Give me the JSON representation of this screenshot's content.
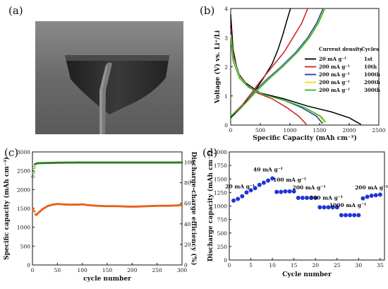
{
  "panels": {
    "a": {
      "letter": "(a)"
    },
    "b": {
      "letter": "(b)"
    },
    "c": {
      "letter": "(c)"
    },
    "d": {
      "letter": "(d)"
    }
  },
  "photo": {
    "description_colors": {
      "background": "#6f6f6f",
      "device": "#2b2b2b",
      "rod": "#7a7a7a"
    }
  },
  "chart_data": [
    {
      "id": "b",
      "type": "line",
      "xlabel": "Specific Capacity (mAh cm⁻³)",
      "ylabel": "Voltage (V) vs. Li⁺/Li",
      "xlim": [
        0,
        2500
      ],
      "ylim": [
        0,
        4
      ],
      "xticks": [
        "0",
        "500",
        "1000",
        "1500",
        "2000",
        "2500"
      ],
      "yticks": [
        "0",
        "1",
        "2",
        "3",
        "4"
      ],
      "legend_header": [
        "Current density",
        "Cycles"
      ],
      "series": [
        {
          "name": "20 mA g⁻¹",
          "cycle": "1st",
          "color": "#000000",
          "discharge": [
            [
              0,
              3.8
            ],
            [
              40,
              2.6
            ],
            [
              120,
              1.8
            ],
            [
              250,
              1.45
            ],
            [
              500,
              1.1
            ],
            [
              900,
              0.9
            ],
            [
              1300,
              0.65
            ],
            [
              1700,
              0.45
            ],
            [
              2000,
              0.25
            ],
            [
              2200,
              0.02
            ]
          ],
          "charge": [
            [
              0,
              0.25
            ],
            [
              200,
              0.65
            ],
            [
              400,
              1.15
            ],
            [
              550,
              1.6
            ],
            [
              700,
              2.1
            ],
            [
              800,
              2.6
            ],
            [
              880,
              3.1
            ],
            [
              950,
              3.6
            ],
            [
              1010,
              4.0
            ]
          ]
        },
        {
          "name": "200 mA g⁻¹",
          "cycle": "10th",
          "color": "#cc2222",
          "discharge": [
            [
              0,
              3.3
            ],
            [
              40,
              2.5
            ],
            [
              120,
              1.8
            ],
            [
              250,
              1.4
            ],
            [
              450,
              1.1
            ],
            [
              700,
              0.9
            ],
            [
              950,
              0.6
            ],
            [
              1150,
              0.3
            ],
            [
              1280,
              0.02
            ]
          ],
          "charge": [
            [
              0,
              0.3
            ],
            [
              200,
              0.7
            ],
            [
              350,
              1.1
            ],
            [
              500,
              1.5
            ],
            [
              700,
              2.0
            ],
            [
              900,
              2.5
            ],
            [
              1050,
              3.0
            ],
            [
              1200,
              3.5
            ],
            [
              1300,
              4.0
            ]
          ]
        },
        {
          "name": "200 mA g⁻¹",
          "cycle": "100th",
          "color": "#1a3aa8",
          "discharge": [
            [
              0,
              3.2
            ],
            [
              40,
              2.4
            ],
            [
              150,
              1.7
            ],
            [
              300,
              1.3
            ],
            [
              550,
              1.05
            ],
            [
              900,
              0.85
            ],
            [
              1200,
              0.6
            ],
            [
              1450,
              0.3
            ],
            [
              1550,
              0.05
            ]
          ],
          "charge": [
            [
              0,
              0.3
            ],
            [
              250,
              0.75
            ],
            [
              400,
              1.15
            ],
            [
              600,
              1.55
            ],
            [
              850,
              2.0
            ],
            [
              1100,
              2.5
            ],
            [
              1300,
              3.0
            ],
            [
              1450,
              3.5
            ],
            [
              1560,
              4.0
            ]
          ]
        },
        {
          "name": "200 mA g⁻¹",
          "cycle": "200th",
          "color": "#e8e010",
          "discharge": [
            [
              0,
              3.1
            ],
            [
              40,
              2.3
            ],
            [
              150,
              1.65
            ],
            [
              300,
              1.3
            ],
            [
              550,
              1.05
            ],
            [
              900,
              0.85
            ],
            [
              1250,
              0.6
            ],
            [
              1500,
              0.3
            ],
            [
              1580,
              0.05
            ]
          ],
          "charge": [
            [
              0,
              0.3
            ],
            [
              250,
              0.75
            ],
            [
              420,
              1.15
            ],
            [
              620,
              1.55
            ],
            [
              870,
              2.0
            ],
            [
              1120,
              2.5
            ],
            [
              1320,
              3.0
            ],
            [
              1470,
              3.5
            ],
            [
              1580,
              4.0
            ]
          ]
        },
        {
          "name": "200 mA g⁻¹",
          "cycle": "300th",
          "color": "#2ab82a",
          "discharge": [
            [
              0,
              3.0
            ],
            [
              40,
              2.2
            ],
            [
              150,
              1.6
            ],
            [
              300,
              1.3
            ],
            [
              550,
              1.05
            ],
            [
              900,
              0.85
            ],
            [
              1250,
              0.6
            ],
            [
              1520,
              0.3
            ],
            [
              1600,
              0.1
            ]
          ],
          "charge": [
            [
              0,
              0.3
            ],
            [
              250,
              0.75
            ],
            [
              430,
              1.15
            ],
            [
              630,
              1.55
            ],
            [
              880,
              2.0
            ],
            [
              1130,
              2.5
            ],
            [
              1330,
              3.0
            ],
            [
              1480,
              3.5
            ],
            [
              1590,
              4.0
            ]
          ]
        }
      ]
    },
    {
      "id": "c",
      "type": "scatter",
      "xlabel": "cycle number",
      "ylabel_left": "Specific capacity (mAh cm⁻³)",
      "ylabel_right": "Discharge-charge efficiency (%)",
      "xlim": [
        0,
        300
      ],
      "ylim_left": [
        0,
        3000
      ],
      "ylim_right": [
        0,
        110
      ],
      "xticks": [
        "0",
        "50",
        "100",
        "150",
        "200",
        "250",
        "300"
      ],
      "yticks_left": [
        "0",
        "500",
        "1000",
        "1500",
        "2000",
        "2500",
        "3000"
      ],
      "yticks_right": [
        "0",
        "20",
        "40",
        "60",
        "80",
        "100"
      ],
      "capacity_color": "#e8601c",
      "efficiency_color": "#2e7d1f",
      "capacity": [
        [
          1,
          1450
        ],
        [
          2,
          1500
        ],
        [
          4,
          1420
        ],
        [
          6,
          1340
        ],
        [
          8,
          1330
        ],
        [
          10,
          1360
        ],
        [
          15,
          1420
        ],
        [
          20,
          1480
        ],
        [
          25,
          1520
        ],
        [
          30,
          1560
        ],
        [
          40,
          1600
        ],
        [
          50,
          1620
        ],
        [
          60,
          1610
        ],
        [
          70,
          1600
        ],
        [
          80,
          1600
        ],
        [
          90,
          1600
        ],
        [
          100,
          1610
        ],
        [
          110,
          1590
        ],
        [
          120,
          1580
        ],
        [
          130,
          1570
        ],
        [
          150,
          1560
        ],
        [
          170,
          1560
        ],
        [
          190,
          1550
        ],
        [
          210,
          1550
        ],
        [
          230,
          1560
        ],
        [
          250,
          1570
        ],
        [
          270,
          1570
        ],
        [
          290,
          1580
        ],
        [
          300,
          1590
        ]
      ],
      "efficiency": [
        [
          1,
          86
        ],
        [
          2,
          90
        ],
        [
          3,
          95
        ],
        [
          5,
          98
        ],
        [
          10,
          99
        ],
        [
          50,
          99.5
        ],
        [
          100,
          99.7
        ],
        [
          150,
          99.7
        ],
        [
          200,
          99.7
        ],
        [
          250,
          99.7
        ],
        [
          300,
          99.7
        ]
      ]
    },
    {
      "id": "d",
      "type": "scatter",
      "xlabel": "Cycle number",
      "ylabel": "Discharge capacity (mAh cm⁻³)",
      "xlim": [
        0,
        36
      ],
      "ylim": [
        0,
        2000
      ],
      "xticks": [
        "0",
        "5",
        "10",
        "15",
        "20",
        "25",
        "30",
        "35"
      ],
      "yticks": [
        "0",
        "250",
        "500",
        "750",
        "1000",
        "1250",
        "1500",
        "1750",
        "2000"
      ],
      "marker_color": "#1f34d6",
      "points": [
        [
          1,
          1100
        ],
        [
          2,
          1130
        ],
        [
          3,
          1180
        ],
        [
          4,
          1250
        ],
        [
          5,
          1290
        ],
        [
          6,
          1330
        ],
        [
          7,
          1390
        ],
        [
          8,
          1430
        ],
        [
          9,
          1470
        ],
        [
          10,
          1510
        ],
        [
          11,
          1260
        ],
        [
          12,
          1260
        ],
        [
          13,
          1270
        ],
        [
          14,
          1270
        ],
        [
          15,
          1270
        ],
        [
          16,
          1150
        ],
        [
          17,
          1150
        ],
        [
          18,
          1150
        ],
        [
          19,
          1150
        ],
        [
          20,
          1150
        ],
        [
          21,
          975
        ],
        [
          22,
          975
        ],
        [
          23,
          975
        ],
        [
          24,
          975
        ],
        [
          25,
          975
        ],
        [
          26,
          830
        ],
        [
          27,
          830
        ],
        [
          28,
          830
        ],
        [
          29,
          830
        ],
        [
          30,
          830
        ],
        [
          31,
          1140
        ],
        [
          32,
          1170
        ],
        [
          33,
          1190
        ],
        [
          34,
          1200
        ],
        [
          35,
          1210
        ]
      ],
      "annotations": [
        {
          "text": "20 mA g⁻¹",
          "x": 2.5,
          "y": 1330
        },
        {
          "text": "40 mA g⁻¹",
          "x": 9,
          "y": 1640
        },
        {
          "text": "100 mA g⁻¹",
          "x": 14,
          "y": 1450
        },
        {
          "text": "200 mA g⁻¹",
          "x": 18.5,
          "y": 1310
        },
        {
          "text": "500 mA g⁻¹",
          "x": 22.5,
          "y": 1120
        },
        {
          "text": "1000 mA g⁻¹",
          "x": 27.5,
          "y": 980
        },
        {
          "text": "200 mA g⁻¹",
          "x": 33,
          "y": 1310
        }
      ]
    }
  ]
}
